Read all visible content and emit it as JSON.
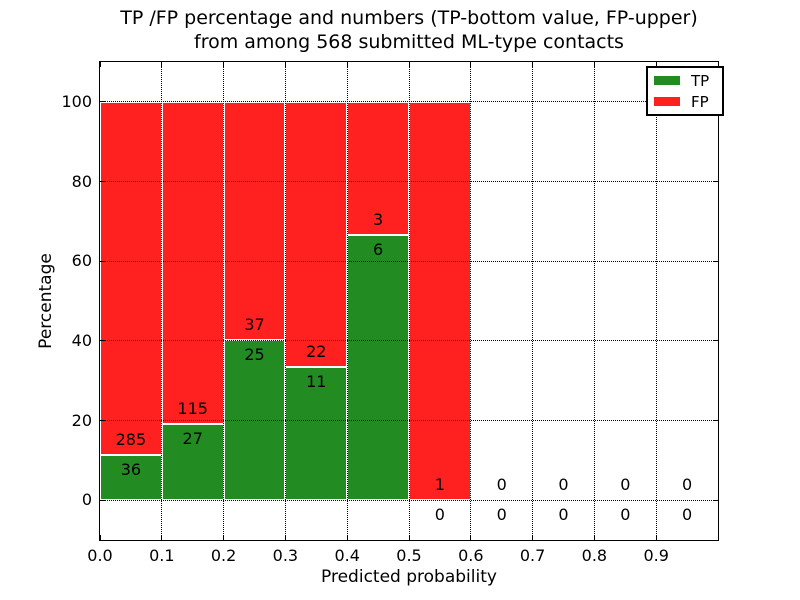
{
  "chart_data": {
    "type": "bar",
    "stacked": true,
    "normalized_to_percent": true,
    "title_line1": "TP /FP percentage and numbers (TP-bottom value, FP-upper)",
    "title_line2": "from among 568 submitted ML-type contacts",
    "xlabel": "Predicted probability",
    "ylabel": "Percentage",
    "total_submitted": 568,
    "xlim": [
      0.0,
      1.0
    ],
    "ylim": [
      -10,
      110
    ],
    "bin_width": 0.1,
    "x_bin_starts": [
      0.0,
      0.1,
      0.2,
      0.3,
      0.4,
      0.5,
      0.6,
      0.7,
      0.8,
      0.9
    ],
    "xtick_labels": [
      "0.0",
      "0.1",
      "0.2",
      "0.3",
      "0.4",
      "0.5",
      "0.6",
      "0.7",
      "0.8",
      "0.9"
    ],
    "ytick_values": [
      0,
      20,
      40,
      60,
      80,
      100
    ],
    "series": [
      {
        "name": "TP",
        "color": "#228b22",
        "counts": [
          36,
          27,
          25,
          11,
          6,
          0,
          0,
          0,
          0,
          0
        ]
      },
      {
        "name": "FP",
        "color": "#ff2020",
        "counts": [
          285,
          115,
          37,
          22,
          3,
          1,
          0,
          0,
          0,
          0
        ]
      }
    ],
    "grid": "dotted",
    "legend_position": "upper right",
    "colors": {
      "bar_edge": "#ffffff",
      "axes": "#000000",
      "background": "#ffffff",
      "text": "#000000"
    }
  }
}
